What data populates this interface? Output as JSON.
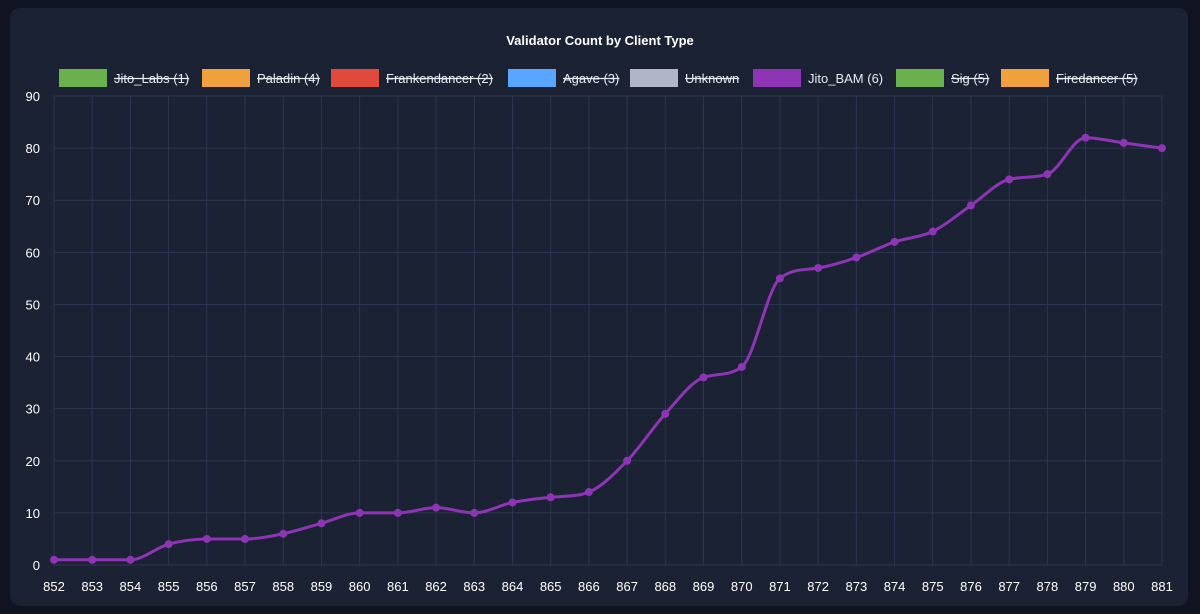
{
  "chart_data": {
    "type": "line",
    "title": "Validator Count by Client Type",
    "xlabel": "",
    "ylabel": "",
    "x": [
      "852",
      "853",
      "854",
      "855",
      "856",
      "857",
      "858",
      "859",
      "860",
      "861",
      "862",
      "863",
      "864",
      "865",
      "866",
      "867",
      "868",
      "869",
      "870",
      "871",
      "872",
      "873",
      "874",
      "875",
      "876",
      "877",
      "878",
      "879",
      "880",
      "881"
    ],
    "ylim": [
      0,
      90
    ],
    "yticks": [
      0,
      10,
      20,
      30,
      40,
      50,
      60,
      70,
      80,
      90
    ],
    "grid": true,
    "legend_position": "top",
    "legend": [
      {
        "label": "Jito_Labs (1)",
        "color": "#6ab04c",
        "hidden": true
      },
      {
        "label": "Paladin (4)",
        "color": "#f0a03c",
        "hidden": true
      },
      {
        "label": "Frankendancer (2)",
        "color": "#e2493d",
        "hidden": true
      },
      {
        "label": "Agave (3)",
        "color": "#58a6ff",
        "hidden": true
      },
      {
        "label": "Unknown",
        "color": "#b0b5c8",
        "hidden": true
      },
      {
        "label": "Jito_BAM (6)",
        "color": "#8e35b5",
        "hidden": false
      },
      {
        "label": "Sig (5)",
        "color": "#6ab04c",
        "hidden": true
      },
      {
        "label": "Firedancer (5)",
        "color": "#f0a03c",
        "hidden": true
      }
    ],
    "series": [
      {
        "name": "Jito_BAM (6)",
        "color": "#8e35b5",
        "values": [
          1,
          1,
          1,
          4,
          5,
          5,
          6,
          8,
          10,
          10,
          11,
          10,
          12,
          13,
          14,
          20,
          29,
          36,
          38,
          55,
          57,
          59,
          62,
          64,
          69,
          74,
          75,
          82,
          81,
          80
        ]
      }
    ]
  }
}
